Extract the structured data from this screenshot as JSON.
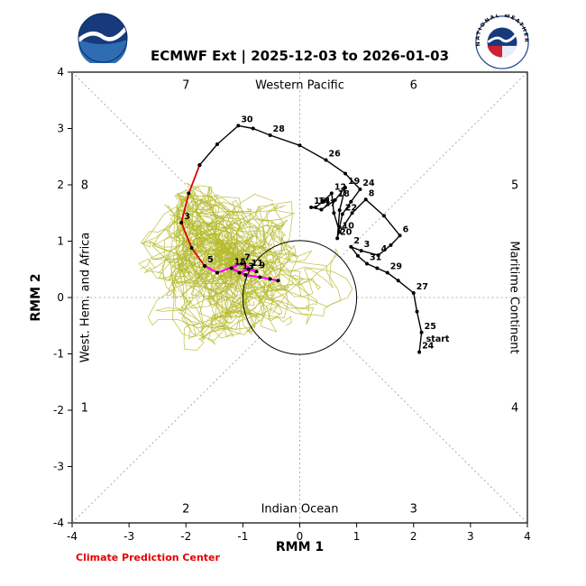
{
  "header": {
    "title": "ECMWF Ext | 2025-12-03 to 2026-01-03",
    "nws_ring_text": "NATIONAL WEATHER SERVICE"
  },
  "footer": {
    "credit": "Climate Prediction Center"
  },
  "logos": {
    "left": "noaa-logo",
    "right": "nws-logo"
  },
  "chart_data": {
    "type": "line",
    "title": "ECMWF Ext | 2025-12-03 to 2026-01-03",
    "xlabel": "RMM 1",
    "ylabel": "RMM 2",
    "xlim": [
      -4,
      4
    ],
    "ylim": [
      -4,
      4
    ],
    "xticks": [
      -4,
      -3,
      -2,
      -1,
      0,
      1,
      2,
      3,
      4
    ],
    "yticks": [
      -4,
      -3,
      -2,
      -1,
      0,
      1,
      2,
      3,
      4
    ],
    "unit_circle_radius": 1,
    "grid_color": "#999999",
    "grid_dashed": true,
    "legend_position": "none",
    "phase_numbers": [
      {
        "n": "7",
        "x": -2,
        "y": 3.78
      },
      {
        "n": "6",
        "x": 2,
        "y": 3.78
      },
      {
        "n": "8",
        "x": -3.78,
        "y": 2.0
      },
      {
        "n": "5",
        "x": 3.78,
        "y": 2.0
      },
      {
        "n": "1",
        "x": -3.78,
        "y": -1.95
      },
      {
        "n": "4",
        "x": 3.78,
        "y": -1.95
      },
      {
        "n": "2",
        "x": -2,
        "y": -3.74
      },
      {
        "n": "3",
        "x": 2,
        "y": -3.74
      }
    ],
    "region_names": [
      {
        "text": "Western Pacific",
        "x": 0,
        "y": 3.78,
        "rotate": 0
      },
      {
        "text": "Indian Ocean",
        "x": 0,
        "y": -3.74,
        "rotate": 0
      },
      {
        "text": "West. Hem. and Africa",
        "x": -3.78,
        "y": 0,
        "rotate": -90
      },
      {
        "text": "Maritime Continent",
        "x": 3.78,
        "y": 0,
        "rotate": 90
      }
    ],
    "annotations": [
      {
        "text": "start",
        "x": 2.22,
        "y": -0.78
      }
    ],
    "series": [
      {
        "name": "observed-rmm-track",
        "color": "#000000",
        "width": 1.4,
        "marker": true,
        "points": [
          {
            "l": "24",
            "x": 2.1,
            "y": -0.97
          },
          {
            "l": "25",
            "x": 2.14,
            "y": -0.62
          },
          {
            "l": "",
            "x": 2.06,
            "y": -0.25
          },
          {
            "l": "27",
            "x": 2.0,
            "y": 0.08
          },
          {
            "l": "",
            "x": 1.73,
            "y": 0.3
          },
          {
            "l": "29",
            "x": 1.54,
            "y": 0.44
          },
          {
            "l": "",
            "x": 1.36,
            "y": 0.52
          },
          {
            "l": "31",
            "x": 1.18,
            "y": 0.6
          },
          {
            "l": "",
            "x": 1.02,
            "y": 0.74
          },
          {
            "l": "2",
            "x": 0.9,
            "y": 0.9
          },
          {
            "l": "3",
            "x": 1.08,
            "y": 0.83
          },
          {
            "l": "4",
            "x": 1.38,
            "y": 0.75
          },
          {
            "l": "",
            "x": 1.6,
            "y": 0.93
          },
          {
            "l": "6",
            "x": 1.76,
            "y": 1.1
          },
          {
            "l": "",
            "x": 1.48,
            "y": 1.45
          },
          {
            "l": "8",
            "x": 1.16,
            "y": 1.74
          },
          {
            "l": "",
            "x": 0.92,
            "y": 1.5
          },
          {
            "l": "10",
            "x": 0.7,
            "y": 1.16
          },
          {
            "l": "",
            "x": 0.6,
            "y": 1.5
          },
          {
            "l": "12",
            "x": 0.56,
            "y": 1.85
          },
          {
            "l": "",
            "x": 0.4,
            "y": 1.7
          },
          {
            "l": "14",
            "x": 0.28,
            "y": 1.6
          },
          {
            "l": "16",
            "x": 0.2,
            "y": 1.6
          },
          {
            "l": "17",
            "x": 0.38,
            "y": 1.56
          },
          {
            "l": "18",
            "x": 0.62,
            "y": 1.73
          },
          {
            "l": "19",
            "x": 0.8,
            "y": 1.95
          },
          {
            "l": "",
            "x": 0.7,
            "y": 1.55
          },
          {
            "l": "20",
            "x": 0.66,
            "y": 1.05
          },
          {
            "l": "",
            "x": 0.7,
            "y": 1.25
          },
          {
            "l": "22",
            "x": 0.75,
            "y": 1.48
          },
          {
            "l": "",
            "x": 0.9,
            "y": 1.7
          },
          {
            "l": "24",
            "x": 1.06,
            "y": 1.92
          },
          {
            "l": "",
            "x": 0.8,
            "y": 2.2
          },
          {
            "l": "26",
            "x": 0.46,
            "y": 2.44
          },
          {
            "l": "",
            "x": 0.0,
            "y": 2.7
          },
          {
            "l": "28",
            "x": -0.52,
            "y": 2.88
          },
          {
            "l": "",
            "x": -0.82,
            "y": 3.0
          },
          {
            "l": "30",
            "x": -1.08,
            "y": 3.05
          },
          {
            "l": "",
            "x": -1.45,
            "y": 2.72
          },
          {
            "l": "",
            "x": -1.76,
            "y": 2.35
          }
        ]
      },
      {
        "name": "forecast-first-days",
        "color": "#e00000",
        "width": 1.8,
        "marker": true,
        "points": [
          {
            "l": "",
            "x": -1.76,
            "y": 2.35
          },
          {
            "l": "",
            "x": -1.95,
            "y": 1.85
          },
          {
            "l": "3",
            "x": -2.08,
            "y": 1.33
          },
          {
            "l": "",
            "x": -1.9,
            "y": 0.88
          },
          {
            "l": "5",
            "x": -1.67,
            "y": 0.56
          }
        ]
      },
      {
        "name": "ensemble-mean",
        "color": "#ff00ff",
        "width": 2.2,
        "marker": true,
        "points": [
          {
            "l": "",
            "x": -1.67,
            "y": 0.56
          },
          {
            "l": "",
            "x": -1.45,
            "y": 0.44
          },
          {
            "l": "7",
            "x": -1.02,
            "y": 0.6
          },
          {
            "l": "9",
            "x": -0.76,
            "y": 0.46
          },
          {
            "l": "11",
            "x": -0.9,
            "y": 0.5
          },
          {
            "l": "13",
            "x": -1.06,
            "y": 0.44
          },
          {
            "l": "15",
            "x": -1.2,
            "y": 0.52
          },
          {
            "l": "",
            "x": -0.95,
            "y": 0.4
          },
          {
            "l": "",
            "x": -0.7,
            "y": 0.36
          },
          {
            "l": "",
            "x": -0.52,
            "y": 0.33
          },
          {
            "l": "",
            "x": -0.38,
            "y": 0.3
          }
        ]
      }
    ],
    "ensemble": {
      "name": "ensemble-members",
      "color": "#b4b929",
      "count": 60,
      "steps": 34,
      "seed": 20251203,
      "start": [
        -1.95,
        1.5
      ],
      "target": [
        -1.15,
        0.4
      ],
      "noise": 0.21,
      "pull": 0.055,
      "momentum": 0.6,
      "opacity": 0.8,
      "width": 0.8
    }
  }
}
